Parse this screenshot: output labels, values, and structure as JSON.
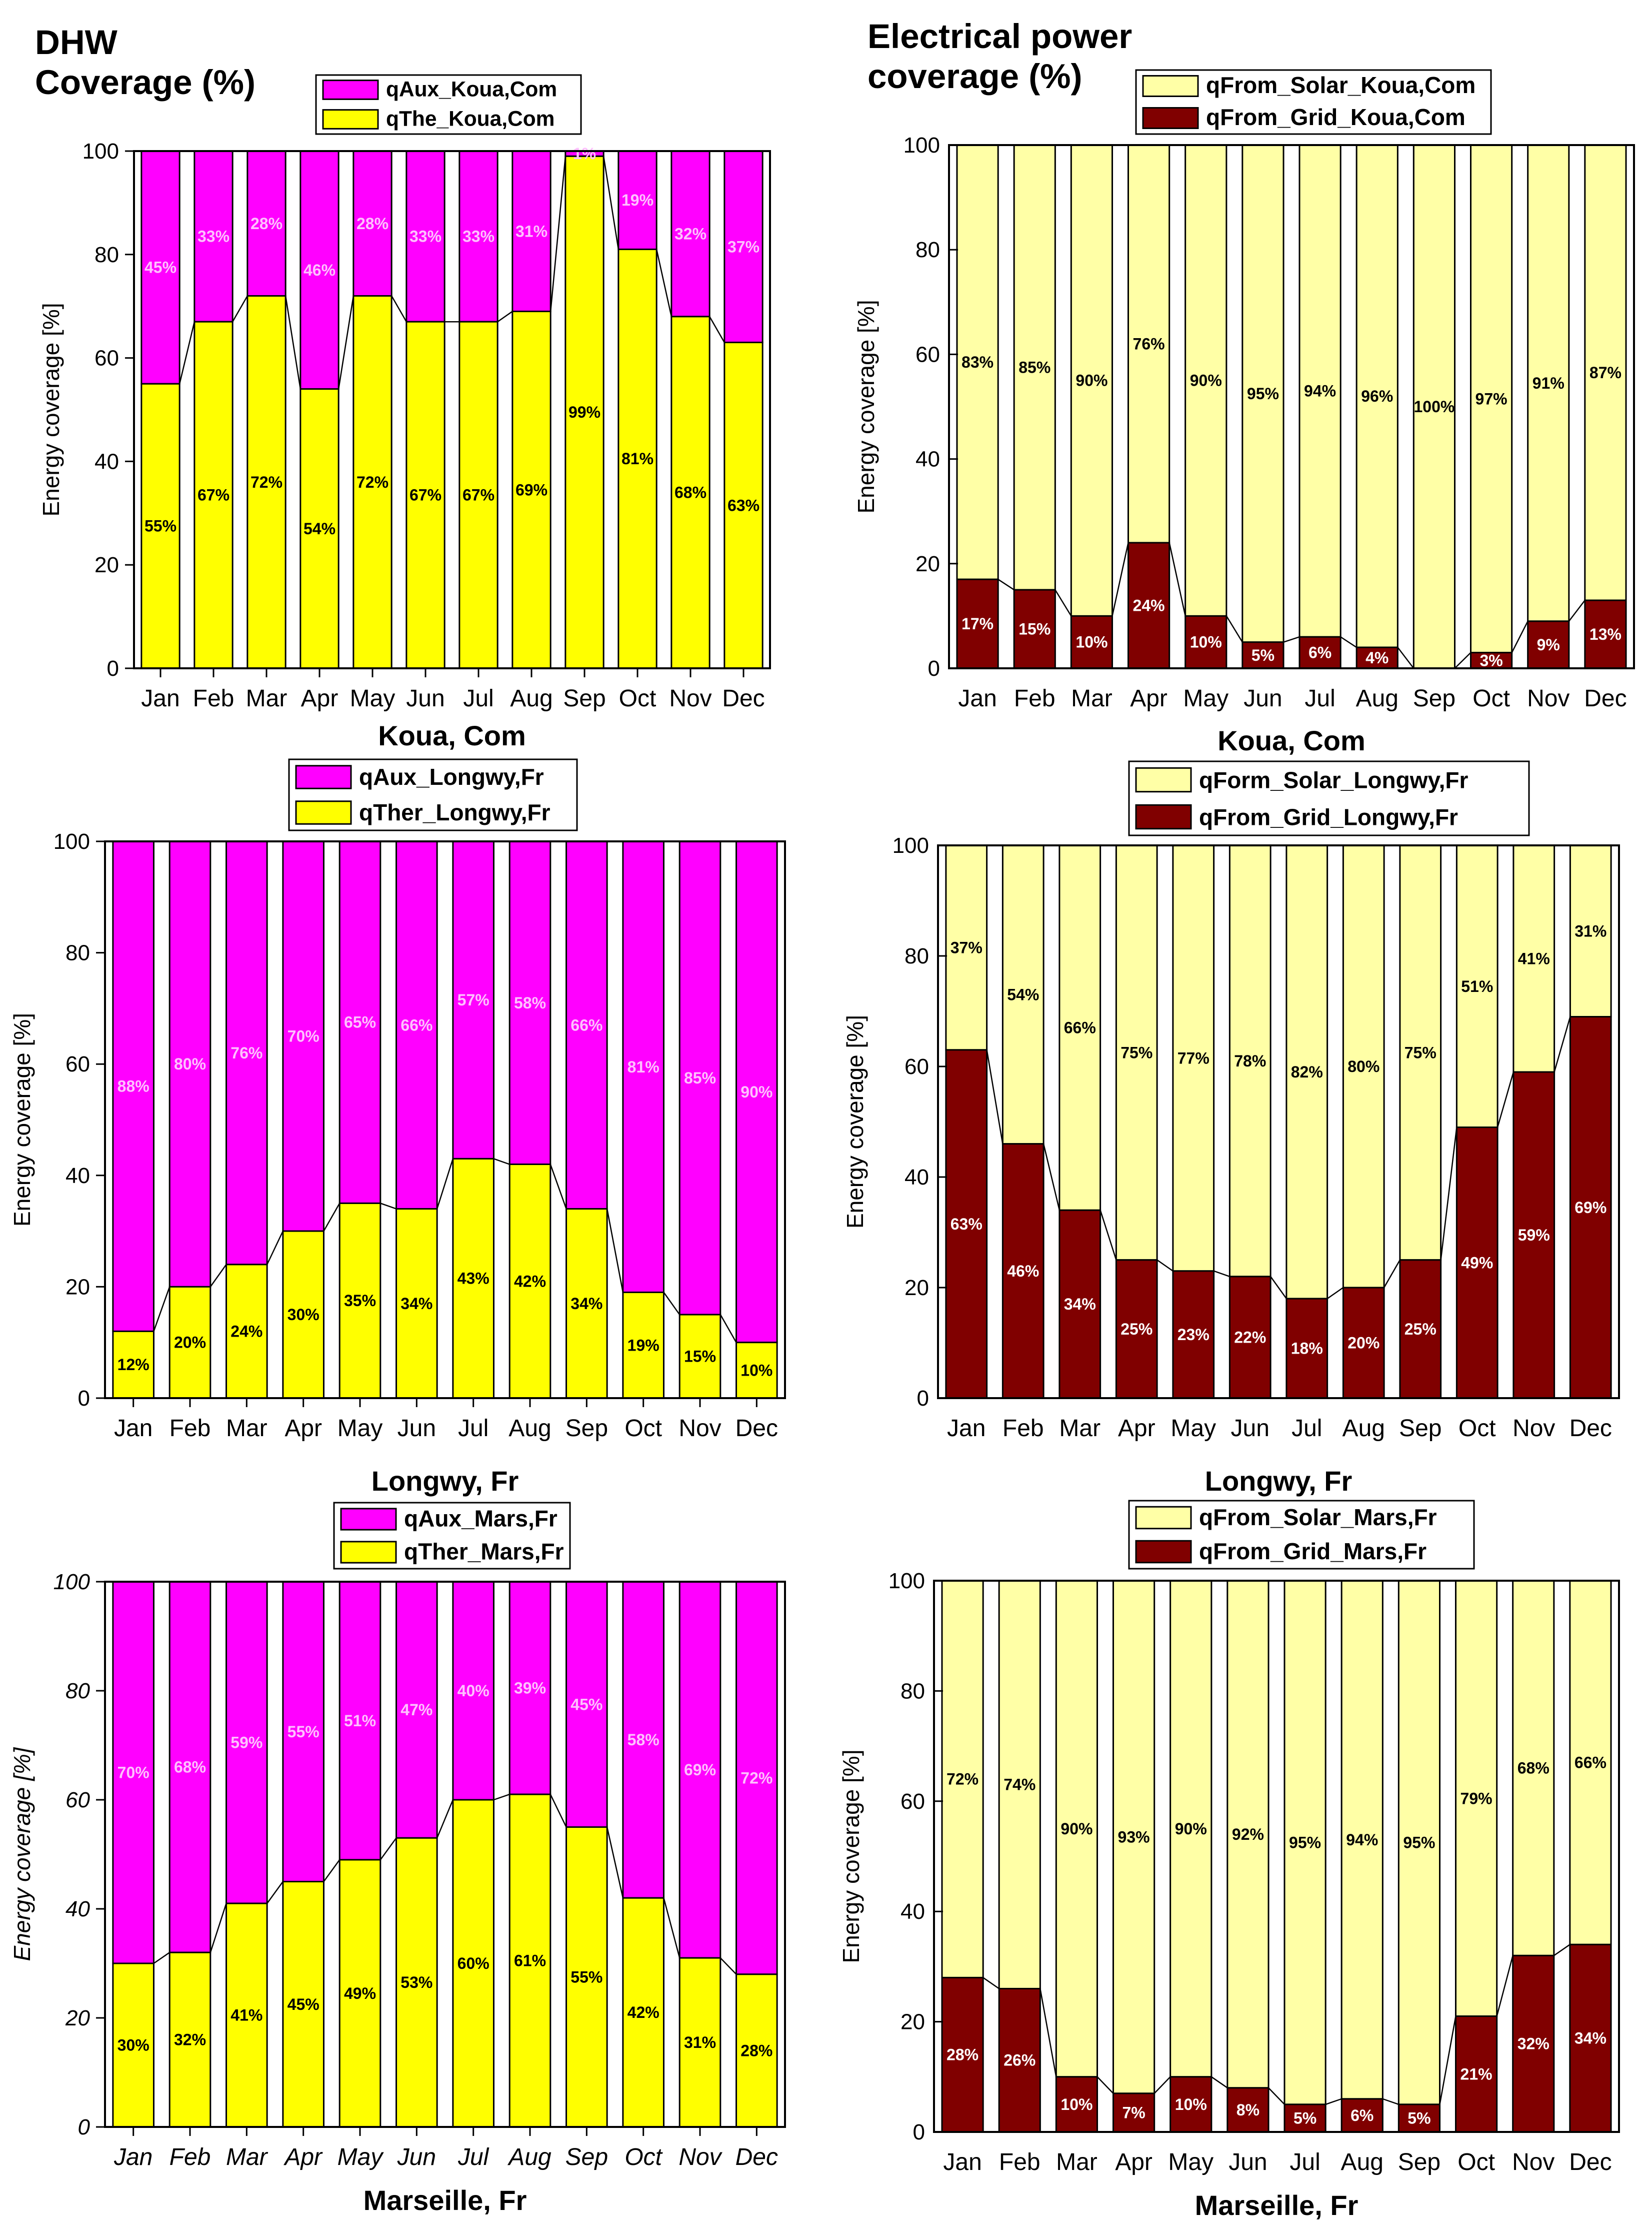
{
  "headers": {
    "left": "DHW\nCoverage (%)",
    "right": "Electrical power\ncoverage (%)"
  },
  "colors": {
    "magenta": "#FF00FF",
    "yellow": "#FFFF00",
    "pale_yellow": "#FFFFA6",
    "dark_red": "#800000",
    "magenta_label": "#FFC0FF",
    "black": "#000000",
    "white": "#FFFFFF"
  },
  "chart_data": [
    {
      "type": "bar",
      "stacked": true,
      "categories": [
        "Jan",
        "Feb",
        "Mar",
        "Apr",
        "May",
        "Jun",
        "Jul",
        "Aug",
        "Sep",
        "Oct",
        "Nov",
        "Dec"
      ],
      "series": [
        {
          "name": "qThe_Koua,Com",
          "values": [
            55,
            67,
            72,
            54,
            72,
            67,
            67,
            69,
            99,
            81,
            68,
            63
          ]
        },
        {
          "name": "qAux_Koua,Com",
          "values": [
            45,
            33,
            28,
            46,
            28,
            33,
            33,
            31,
            1,
            19,
            32,
            37
          ]
        }
      ],
      "top_labels": [
        "45%",
        "33%",
        "28%",
        "46%",
        "28%",
        "33%",
        "33%",
        "31%",
        "1%",
        "19%",
        "32%",
        "37%"
      ],
      "bottom_labels": [
        "55%",
        "67%",
        "72%",
        "54%",
        "72%",
        "67%",
        "67%",
        "69%",
        "99%",
        "81%",
        "68%",
        "63%"
      ],
      "title": "Koua, Com",
      "xlabel": "Koua, Com",
      "ylabel": "Energy coverage [%]",
      "ylim": [
        0,
        100
      ],
      "yticks": [
        "0",
        "20",
        "40",
        "60",
        "80",
        "100"
      ],
      "legend": [
        "qAux_Koua,Com",
        "qThe_Koua,Com"
      ]
    },
    {
      "type": "bar",
      "stacked": true,
      "categories": [
        "Jan",
        "Feb",
        "Mar",
        "Apr",
        "May",
        "Jun",
        "Jul",
        "Aug",
        "Sep",
        "Oct",
        "Nov",
        "Dec"
      ],
      "series": [
        {
          "name": "qFrom_Grid_Koua,Com",
          "values": [
            17,
            15,
            10,
            24,
            10,
            5,
            6,
            4,
            0,
            3,
            9,
            13
          ]
        },
        {
          "name": "qFrom_Solar_Koua,Com",
          "values": [
            83,
            85,
            90,
            76,
            90,
            95,
            94,
            96,
            100,
            97,
            91,
            87
          ]
        }
      ],
      "top_labels": [
        "83%",
        "85%",
        "90%",
        "76%",
        "90%",
        "95%",
        "94%",
        "96%",
        "100%",
        "97%",
        "91%",
        "87%"
      ],
      "bottom_labels": [
        "17%",
        "15%",
        "10%",
        "24%",
        "10%",
        "5%",
        "6%",
        "4%",
        "",
        "3%",
        "9%",
        "13%"
      ],
      "title": "Koua, Com",
      "xlabel": "Koua, Com",
      "ylabel": "Energy coverage [%]",
      "ylim": [
        0,
        100
      ],
      "yticks": [
        "0",
        "20",
        "40",
        "60",
        "80",
        "100"
      ],
      "legend": [
        "qFrom_Solar_Koua,Com",
        "qFrom_Grid_Koua,Com"
      ]
    },
    {
      "type": "bar",
      "stacked": true,
      "categories": [
        "Jan",
        "Feb",
        "Mar",
        "Apr",
        "May",
        "Jun",
        "Jul",
        "Aug",
        "Sep",
        "Oct",
        "Nov",
        "Dec"
      ],
      "series": [
        {
          "name": "qTher_Longwy,Fr",
          "values": [
            12,
            20,
            24,
            30,
            35,
            34,
            43,
            42,
            34,
            19,
            15,
            10
          ]
        },
        {
          "name": "qAux_Longwy,Fr",
          "values": [
            88,
            80,
            76,
            70,
            65,
            66,
            57,
            58,
            66,
            81,
            85,
            90
          ]
        }
      ],
      "top_labels": [
        "88%",
        "80%",
        "76%",
        "70%",
        "65%",
        "66%",
        "57%",
        "58%",
        "66%",
        "81%",
        "85%",
        "90%"
      ],
      "bottom_labels": [
        "12%",
        "20%",
        "24%",
        "30%",
        "35%",
        "34%",
        "43%",
        "42%",
        "34%",
        "19%",
        "15%",
        "10%"
      ],
      "title": "Longwy, Fr",
      "xlabel": "Longwy, Fr",
      "ylabel": "Energy coverage [%]",
      "ylim": [
        0,
        100
      ],
      "yticks": [
        "0",
        "20",
        "40",
        "60",
        "80",
        "100"
      ],
      "legend": [
        "qAux_Longwy,Fr",
        "qTher_Longwy,Fr"
      ]
    },
    {
      "type": "bar",
      "stacked": true,
      "categories": [
        "Jan",
        "Feb",
        "Mar",
        "Apr",
        "May",
        "Jun",
        "Jul",
        "Aug",
        "Sep",
        "Oct",
        "Nov",
        "Dec"
      ],
      "series": [
        {
          "name": "qFrom_Grid_Longwy,Fr",
          "values": [
            63,
            46,
            34,
            25,
            23,
            22,
            18,
            20,
            25,
            49,
            59,
            69
          ]
        },
        {
          "name": "qForm_Solar_Longwy,Fr",
          "values": [
            37,
            54,
            66,
            75,
            77,
            78,
            82,
            80,
            75,
            51,
            41,
            31
          ]
        }
      ],
      "top_labels": [
        "37%",
        "54%",
        "66%",
        "75%",
        "77%",
        "78%",
        "82%",
        "80%",
        "75%",
        "51%",
        "41%",
        "31%"
      ],
      "bottom_labels": [
        "63%",
        "46%",
        "34%",
        "25%",
        "23%",
        "22%",
        "18%",
        "20%",
        "25%",
        "49%",
        "59%",
        "69%"
      ],
      "title": "Longwy, Fr",
      "xlabel": "Longwy, Fr",
      "ylabel": "Energy coverage [%]",
      "ylim": [
        0,
        100
      ],
      "yticks": [
        "0",
        "20",
        "40",
        "60",
        "80",
        "100"
      ],
      "legend": [
        "qForm_Solar_Longwy,Fr",
        "qFrom_Grid_Longwy,Fr"
      ]
    },
    {
      "type": "bar",
      "stacked": true,
      "categories": [
        "Jan",
        "Feb",
        "Mar",
        "Apr",
        "May",
        "Jun",
        "Jul",
        "Aug",
        "Sep",
        "Oct",
        "Nov",
        "Dec"
      ],
      "series": [
        {
          "name": "qTher_Mars,Fr",
          "values": [
            30,
            32,
            41,
            45,
            49,
            53,
            60,
            61,
            55,
            42,
            31,
            28
          ]
        },
        {
          "name": "qAux_Mars,Fr",
          "values": [
            70,
            68,
            59,
            55,
            51,
            47,
            40,
            39,
            45,
            58,
            69,
            72
          ]
        }
      ],
      "top_labels": [
        "70%",
        "68%",
        "59%",
        "55%",
        "51%",
        "47%",
        "40%",
        "39%",
        "45%",
        "58%",
        "69%",
        "72%"
      ],
      "bottom_labels": [
        "30%",
        "32%",
        "41%",
        "45%",
        "49%",
        "53%",
        "60%",
        "61%",
        "55%",
        "42%",
        "31%",
        "28%"
      ],
      "title": "Marseille, Fr",
      "xlabel": "Marseille, Fr",
      "ylabel": "Energy coverage [%]",
      "ylim": [
        0,
        100
      ],
      "yticks": [
        "0",
        "20",
        "40",
        "60",
        "80",
        "100"
      ],
      "legend": [
        "qAux_Mars,Fr",
        "qTher_Mars,Fr"
      ]
    },
    {
      "type": "bar",
      "stacked": true,
      "categories": [
        "Jan",
        "Feb",
        "Mar",
        "Apr",
        "May",
        "Jun",
        "Jul",
        "Aug",
        "Sep",
        "Oct",
        "Nov",
        "Dec"
      ],
      "series": [
        {
          "name": "qFrom_Grid_Mars,Fr",
          "values": [
            28,
            26,
            10,
            7,
            10,
            8,
            5,
            6,
            5,
            21,
            32,
            34
          ]
        },
        {
          "name": "qFrom_Solar_Mars,Fr",
          "values": [
            72,
            74,
            90,
            93,
            90,
            92,
            95,
            94,
            95,
            79,
            68,
            66
          ]
        }
      ],
      "top_labels": [
        "72%",
        "74%",
        "90%",
        "93%",
        "90%",
        "92%",
        "95%",
        "94%",
        "95%",
        "79%",
        "68%",
        "66%"
      ],
      "bottom_labels": [
        "28%",
        "26%",
        "10%",
        "7%",
        "10%",
        "8%",
        "5%",
        "6%",
        "5%",
        "21%",
        "32%",
        "34%"
      ],
      "title": "Marseille, Fr",
      "xlabel": "Marseille, Fr",
      "ylabel": "Energy coverage [%]",
      "ylim": [
        0,
        100
      ],
      "yticks": [
        "0",
        "20",
        "40",
        "60",
        "80",
        "100"
      ],
      "legend": [
        "qFrom_Solar_Mars,Fr",
        "qFrom_Grid_Mars,Fr"
      ]
    }
  ]
}
